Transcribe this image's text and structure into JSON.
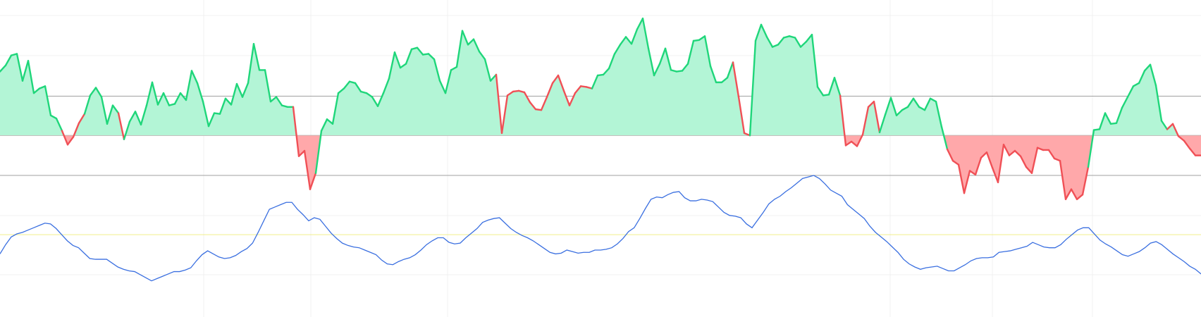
{
  "chart_data": {
    "type": "line",
    "ylim": [
      -236,
      176
    ],
    "fill_above": "#b3f5d6",
    "fill_below": "#ffa8aa",
    "levels": [
      {
        "value": 51,
        "color": "#a0a0a0"
      },
      {
        "value": 0,
        "color": "#a0a0a0"
      },
      {
        "value": -52,
        "color": "#a0a0a0"
      },
      {
        "value": -129,
        "color": "#f2ef8c"
      }
    ],
    "series": [
      {
        "values": [
          83,
          91,
          104,
          106,
          71,
          97,
          55,
          61,
          64,
          26,
          22,
          6,
          -12,
          -2,
          16,
          28,
          52,
          62,
          50,
          15,
          39,
          29,
          -5,
          18,
          31,
          14,
          39,
          69,
          40,
          55,
          39,
          41,
          55,
          46,
          84,
          68,
          44,
          12,
          29,
          28,
          48,
          40,
          67,
          50,
          68,
          119,
          85,
          85,
          44,
          50,
          39,
          37,
          37,
          -27,
          -20,
          -70,
          -49,
          6,
          21,
          15,
          55,
          61,
          70,
          68,
          57,
          55,
          50,
          38,
          55,
          74,
          108,
          88,
          93,
          112,
          114,
          105,
          106,
          99,
          71,
          55,
          85,
          89,
          136,
          118,
          125,
          109,
          99,
          71,
          79,
          3,
          52,
          57,
          58,
          56,
          43,
          34,
          33,
          50,
          68,
          78,
          58,
          39,
          55,
          64,
          63,
          61,
          78,
          79,
          87,
          106,
          118,
          128,
          119,
          138,
          152,
          113,
          78,
          93,
          113,
          85,
          83,
          84,
          93,
          123,
          124,
          129,
          90,
          69,
          69,
          75,
          95,
          50,
          3,
          0,
          123,
          144,
          128,
          115,
          118,
          127,
          129,
          127,
          115,
          122,
          131,
          63,
          52,
          53,
          75,
          52,
          -13,
          -8,
          -14,
          1,
          37,
          44,
          4,
          27,
          49,
          26,
          33,
          37,
          48,
          37,
          33,
          48,
          44,
          11,
          -18,
          -33,
          -38,
          -75,
          -46,
          -51,
          -29,
          -22,
          -42,
          -61,
          -12,
          -26,
          -20,
          -27,
          -41,
          -49,
          -16,
          -19,
          -19,
          -30,
          -33,
          -83,
          -70,
          -83,
          -77,
          -41,
          7,
          8,
          29,
          15,
          16,
          36,
          50,
          64,
          68,
          84,
          92,
          65,
          19,
          8,
          15,
          -1,
          -7,
          -17,
          -26,
          -26
        ],
        "colors": [
          "#1fd67a",
          "#1fd67a",
          "#1fd67a",
          "#1fd67a",
          "#1fd67a",
          "#1fd67a",
          "#1fd67a",
          "#1fd67a",
          "#1fd67a",
          "#1fd67a",
          "#1fd67a",
          "#1fd67a",
          "#f05056",
          "#f05056",
          "#f05056",
          "#f05056",
          "#1fd67a",
          "#1fd67a",
          "#1fd67a",
          "#1fd67a",
          "#1fd67a",
          "#1fd67a",
          "#f05056",
          "#1fd67a",
          "#1fd67a",
          "#1fd67a",
          "#1fd67a",
          "#1fd67a",
          "#1fd67a",
          "#1fd67a",
          "#1fd67a",
          "#1fd67a",
          "#1fd67a",
          "#1fd67a",
          "#1fd67a",
          "#1fd67a",
          "#1fd67a",
          "#1fd67a",
          "#1fd67a",
          "#1fd67a",
          "#1fd67a",
          "#1fd67a",
          "#1fd67a",
          "#1fd67a",
          "#1fd67a",
          "#1fd67a",
          "#1fd67a",
          "#1fd67a",
          "#1fd67a",
          "#1fd67a",
          "#1fd67a",
          "#1fd67a",
          "#1fd67a",
          "#f05056",
          "#f05056",
          "#f05056",
          "#f05056",
          "#1fd67a",
          "#1fd67a",
          "#1fd67a",
          "#1fd67a",
          "#1fd67a",
          "#1fd67a",
          "#1fd67a",
          "#1fd67a",
          "#1fd67a",
          "#1fd67a",
          "#1fd67a",
          "#1fd67a",
          "#1fd67a",
          "#1fd67a",
          "#1fd67a",
          "#1fd67a",
          "#1fd67a",
          "#1fd67a",
          "#1fd67a",
          "#1fd67a",
          "#1fd67a",
          "#1fd67a",
          "#1fd67a",
          "#1fd67a",
          "#1fd67a",
          "#1fd67a",
          "#1fd67a",
          "#1fd67a",
          "#1fd67a",
          "#1fd67a",
          "#1fd67a",
          "#1fd67a",
          "#f05056",
          "#f05056",
          "#f05056",
          "#f05056",
          "#f05056",
          "#f05056",
          "#f05056",
          "#f05056",
          "#f05056",
          "#f05056",
          "#f05056",
          "#f05056",
          "#f05056",
          "#f05056",
          "#f05056",
          "#f05056",
          "#f05056",
          "#1fd67a",
          "#1fd67a",
          "#1fd67a",
          "#1fd67a",
          "#1fd67a",
          "#1fd67a",
          "#1fd67a",
          "#1fd67a",
          "#1fd67a",
          "#1fd67a",
          "#1fd67a",
          "#1fd67a",
          "#1fd67a",
          "#1fd67a",
          "#1fd67a",
          "#1fd67a",
          "#1fd67a",
          "#1fd67a",
          "#1fd67a",
          "#1fd67a",
          "#1fd67a",
          "#1fd67a",
          "#1fd67a",
          "#1fd67a",
          "#1fd67a",
          "#f05056",
          "#f05056",
          "#f05056",
          "#1fd67a",
          "#1fd67a",
          "#1fd67a",
          "#1fd67a",
          "#1fd67a",
          "#1fd67a",
          "#1fd67a",
          "#1fd67a",
          "#1fd67a",
          "#1fd67a",
          "#1fd67a",
          "#1fd67a",
          "#1fd67a",
          "#1fd67a",
          "#1fd67a",
          "#1fd67a",
          "#f05056",
          "#f05056",
          "#f05056",
          "#f05056",
          "#f05056",
          "#f05056",
          "#f05056",
          "#1fd67a",
          "#1fd67a",
          "#1fd67a",
          "#1fd67a",
          "#1fd67a",
          "#1fd67a",
          "#1fd67a",
          "#1fd67a",
          "#1fd67a",
          "#1fd67a",
          "#1fd67a",
          "#1fd67a",
          "#f05056",
          "#f05056",
          "#f05056",
          "#f05056",
          "#f05056",
          "#f05056",
          "#f05056",
          "#f05056",
          "#f05056",
          "#f05056",
          "#f05056",
          "#f05056",
          "#f05056",
          "#f05056",
          "#f05056",
          "#f05056",
          "#f05056",
          "#f05056",
          "#f05056",
          "#f05056",
          "#f05056",
          "#f05056",
          "#f05056",
          "#f05056",
          "#f05056",
          "#1fd67a",
          "#1fd67a",
          "#1fd67a",
          "#1fd67a",
          "#1fd67a",
          "#1fd67a",
          "#1fd67a",
          "#1fd67a",
          "#1fd67a",
          "#1fd67a",
          "#1fd67a",
          "#1fd67a",
          "#1fd67a",
          "#1fd67a",
          "#f05056",
          "#f05056",
          "#f05056",
          "#f05056",
          "#f05056",
          "#f05056"
        ]
      },
      {
        "color": "#3a6fe0",
        "values": [
          -154,
          -142,
          -132,
          -128,
          -126,
          -123,
          -120,
          -117,
          -114,
          -115,
          -121,
          -129,
          -137,
          -143,
          -146,
          -153,
          -160,
          -161,
          -161,
          -161,
          -166,
          -171,
          -174,
          -176,
          -177,
          -181,
          -185,
          -189,
          -186,
          -183,
          -180,
          -177,
          -177,
          -175,
          -172,
          -163,
          -155,
          -150,
          -154,
          -158,
          -160,
          -159,
          -156,
          -151,
          -147,
          -140,
          -126,
          -111,
          -96,
          -93,
          -90,
          -87,
          -87,
          -96,
          -103,
          -111,
          -107,
          -109,
          -118,
          -127,
          -134,
          -140,
          -143,
          -145,
          -146,
          -149,
          -152,
          -155,
          -162,
          -167,
          -168,
          -164,
          -161,
          -159,
          -155,
          -149,
          -142,
          -137,
          -133,
          -133,
          -139,
          -141,
          -140,
          -133,
          -127,
          -121,
          -113,
          -110,
          -108,
          -107,
          -114,
          -121,
          -126,
          -130,
          -133,
          -137,
          -142,
          -147,
          -152,
          -154,
          -153,
          -149,
          -151,
          -153,
          -152,
          -152,
          -149,
          -149,
          -148,
          -146,
          -141,
          -134,
          -125,
          -120,
          -108,
          -95,
          -83,
          -80,
          -81,
          -77,
          -74,
          -73,
          -81,
          -85,
          -85,
          -83,
          -84,
          -86,
          -93,
          -100,
          -104,
          -105,
          -107,
          -115,
          -120,
          -110,
          -100,
          -89,
          -83,
          -79,
          -73,
          -68,
          -62,
          -56,
          -54,
          -52,
          -56,
          -63,
          -71,
          -75,
          -79,
          -90,
          -96,
          -102,
          -108,
          -118,
          -126,
          -132,
          -138,
          -145,
          -152,
          -161,
          -167,
          -171,
          -174,
          -172,
          -171,
          -170,
          -173,
          -176,
          -176,
          -172,
          -168,
          -163,
          -160,
          -159,
          -159,
          -158,
          -152,
          -151,
          -150,
          -148,
          -146,
          -144,
          -139,
          -142,
          -145,
          -146,
          -146,
          -142,
          -135,
          -129,
          -123,
          -120,
          -120,
          -128,
          -136,
          -141,
          -145,
          -150,
          -155,
          -157,
          -154,
          -151,
          -146,
          -140,
          -138,
          -142,
          -148,
          -154,
          -159,
          -164,
          -170,
          -174,
          -180
        ]
      }
    ]
  }
}
